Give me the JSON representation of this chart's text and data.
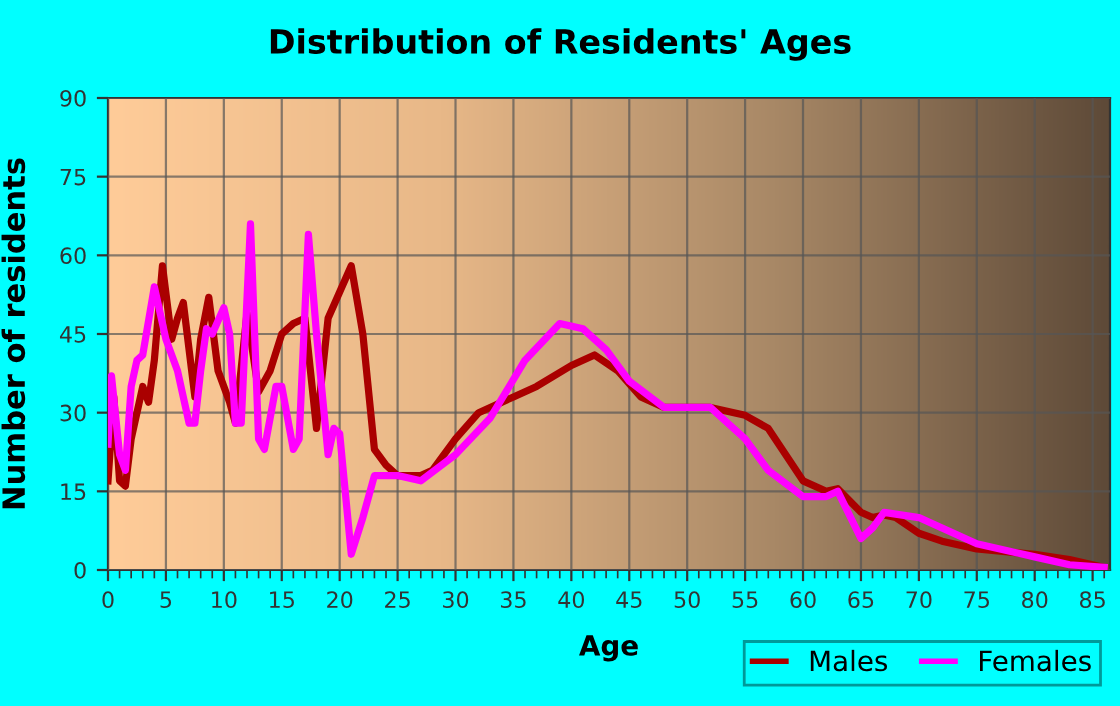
{
  "chart_data": {
    "type": "line",
    "title": "Distribution of Residents' Ages",
    "xlabel": "Age",
    "ylabel": "Number of residents",
    "xlim": [
      0,
      86.5
    ],
    "xticks": [
      0,
      5,
      10,
      15,
      20,
      25,
      30,
      35,
      40,
      45,
      50,
      55,
      60,
      65,
      70,
      75,
      80,
      85
    ],
    "ylim": [
      0,
      90
    ],
    "yticks": [
      0,
      15,
      30,
      45,
      60,
      75,
      90
    ],
    "grid": true,
    "legend": "bottom right",
    "marker": "none",
    "line_style": "solid",
    "series": [
      {
        "name": "Males",
        "color": "#aa0000",
        "x": [
          0,
          0.5,
          1,
          1.5,
          2,
          3,
          3.5,
          4,
          4.7,
          5.5,
          6,
          6.5,
          7.5,
          8,
          8.7,
          9.5,
          10.5,
          11,
          12,
          13,
          14,
          15,
          16,
          17,
          18,
          19,
          20,
          21,
          22,
          23,
          24,
          25,
          27,
          28,
          30,
          32,
          35,
          37,
          40,
          42,
          44,
          46,
          48,
          52,
          55,
          57,
          60,
          62,
          63,
          65,
          66,
          67,
          68,
          70,
          72,
          75,
          80,
          83,
          86
        ],
        "values": [
          17,
          33,
          17,
          16,
          25,
          35,
          32,
          40,
          58,
          44,
          48,
          51,
          33,
          44,
          52,
          38,
          32,
          28,
          49,
          34,
          38,
          45,
          47,
          48,
          27,
          48,
          53,
          58,
          45,
          23,
          20,
          18,
          18,
          19,
          25,
          30,
          33,
          35,
          39,
          41,
          38,
          33,
          31,
          31,
          29.5,
          27,
          17,
          15,
          15.5,
          11,
          10,
          10.5,
          10,
          7,
          5.5,
          4,
          3,
          2,
          0.5
        ]
      },
      {
        "name": "Females",
        "color": "#ff00ff",
        "x": [
          0,
          0.3,
          1,
          1.5,
          2,
          2.5,
          3,
          4,
          5,
          6,
          7,
          7.5,
          8,
          8.5,
          9,
          10,
          10.5,
          11,
          11.5,
          12.3,
          13,
          13.5,
          14.5,
          15,
          16,
          16.5,
          17.3,
          18,
          19,
          19.5,
          20,
          21,
          22,
          23,
          25,
          27,
          30,
          33,
          36,
          39,
          41,
          43,
          45,
          48,
          52,
          55,
          57,
          60,
          62,
          63,
          65,
          66,
          67,
          70,
          72,
          75,
          80,
          83,
          86
        ],
        "values": [
          24,
          37,
          22,
          19,
          35,
          40,
          41,
          54,
          44,
          38,
          28,
          28,
          38,
          46,
          45,
          50,
          45,
          28,
          28,
          66,
          25,
          23,
          35,
          35,
          23,
          25,
          64,
          45,
          22,
          27,
          26,
          3,
          10,
          18,
          18,
          17,
          22,
          29,
          40,
          47,
          46,
          42,
          36,
          31,
          31,
          25,
          19,
          14,
          14,
          15,
          6,
          8,
          11,
          10,
          8,
          5,
          2.5,
          1,
          0.5
        ]
      }
    ]
  }
}
